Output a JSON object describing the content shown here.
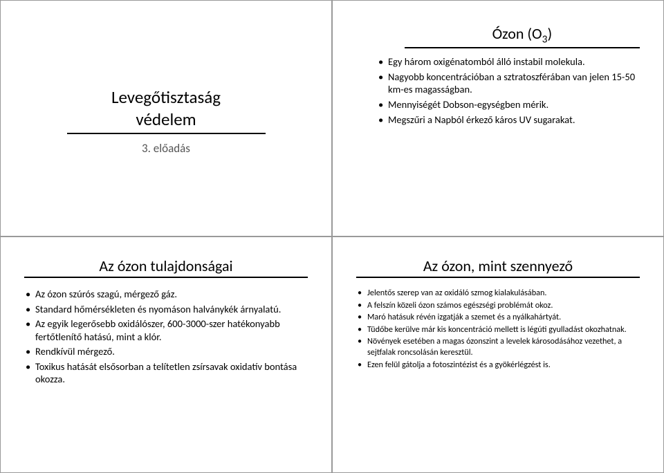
{
  "slide1": {
    "title_line1": "Levegőtisztaság",
    "title_line2": "védelem",
    "subtitle": "3. előadás"
  },
  "slide2": {
    "title_pre": "Ózon (O",
    "title_sub": "3",
    "title_post": ")",
    "bullets": [
      "Egy három oxigénatomból álló instabil molekula.",
      "Nagyobb koncentrációban a sztratoszférában van jelen 15-50 km-es magasságban.",
      "Mennyiségét Dobson-egységben mérik.",
      "Megszűri a Napból érkező káros UV sugarakat."
    ]
  },
  "slide3": {
    "title": "Az ózon tulajdonságai",
    "bullets": [
      "Az ózon szúrós szagú, mérgező gáz.",
      "Standard hőmérsékleten és nyomáson halványkék árnyalatú.",
      "Az egyik legerősebb oxidálószer, 600-3000-szer hatékonyabb fertőtlenítő hatású, mint a klór.",
      "Rendkívül mérgező.",
      "Toxikus hatását elsősorban a telítetlen zsírsavak oxidatív bontása okozza."
    ]
  },
  "slide4": {
    "title": "Az ózon, mint szennyező",
    "bullets": [
      "Jelentős szerep van az oxidáló szmog kialakulásában.",
      "A felszín közeli ózon számos egészségi problémát okoz.",
      "Maró hatásuk révén izgatják a szemet és a nyálkahártyát.",
      "Tüdőbe kerülve már kis koncentráció mellett is légúti gyulladást okozhatnak.",
      "Növények esetében a magas ózonszint a levelek károsodásához vezethet, a sejtfalak roncsolásán keresztül.",
      "Ezen felül gátolja a fotoszintézist és a gyökérlégzést is."
    ]
  }
}
